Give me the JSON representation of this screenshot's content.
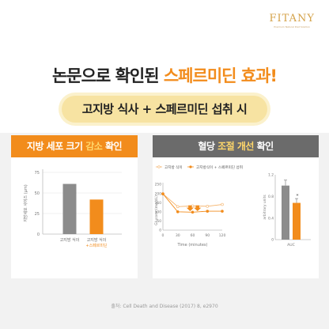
{
  "brand": {
    "name": "FITANY",
    "tagline": "Premium Natural Diet Solution",
    "accent": "#f28c1c"
  },
  "headline": {
    "prefix": "논문으로 확인된 ",
    "highlight": "스페르미딘 효과!"
  },
  "pill_text": "고지방 식사 + 스페르미딘 섭취 시",
  "colors": {
    "gray_series": "#8c8c8c",
    "orange_series": "#f28c1c",
    "pill_bg": "#f7e3a2"
  },
  "cards": {
    "left": {
      "title_prefix": "지방 세포 크기 ",
      "title_accent": "감소",
      "title_suffix": " 확인"
    },
    "right": {
      "title_prefix": "혈당 ",
      "title_accent": "조절 개선",
      "title_suffix": " 확인"
    }
  },
  "chart_data": [
    {
      "type": "bar",
      "ylabel": "지방세포 사이즈 (μm)",
      "yticks": [
        0,
        25,
        50,
        75
      ],
      "ylim": [
        0,
        75
      ],
      "categories": [
        "고지방 식이",
        "고지방 식이"
      ],
      "category_sublabels": [
        "",
        "+스페르미딘"
      ],
      "values": [
        61,
        42
      ],
      "grid": true
    },
    {
      "type": "line",
      "xlabel": "Time (minutes)",
      "ylabel": "Glucose (mg/dL)",
      "x": [
        0,
        30,
        60,
        90,
        120
      ],
      "xlim": [
        0,
        120
      ],
      "ylim": [
        0,
        250
      ],
      "yticks": [
        0,
        50,
        100,
        150,
        200,
        250
      ],
      "legend_position": "top",
      "series": [
        {
          "name": "고지방 식이",
          "values": [
            198,
            128,
            132,
            130,
            140
          ]
        },
        {
          "name": "고지방식이 + 스페르미딘 섭취",
          "values": [
            198,
            100,
            98,
            103,
            103
          ]
        }
      ],
      "annotations": [
        "down-arrow",
        "down-arrow"
      ],
      "grid": false
    },
    {
      "type": "bar",
      "ylabel": "arbitrary units",
      "categories": [
        "AUC"
      ],
      "yticks": [
        0,
        0.4,
        0.8,
        1.2
      ],
      "ylim": [
        0,
        1.2
      ],
      "series": [
        {
          "values": [
            1.0
          ],
          "error": 0.1
        },
        {
          "values": [
            0.68
          ],
          "error": 0.08
        }
      ],
      "annotation": "*",
      "grid": false
    }
  ],
  "source": "출처: Cell Death and Disease (2017) 8, e2970"
}
